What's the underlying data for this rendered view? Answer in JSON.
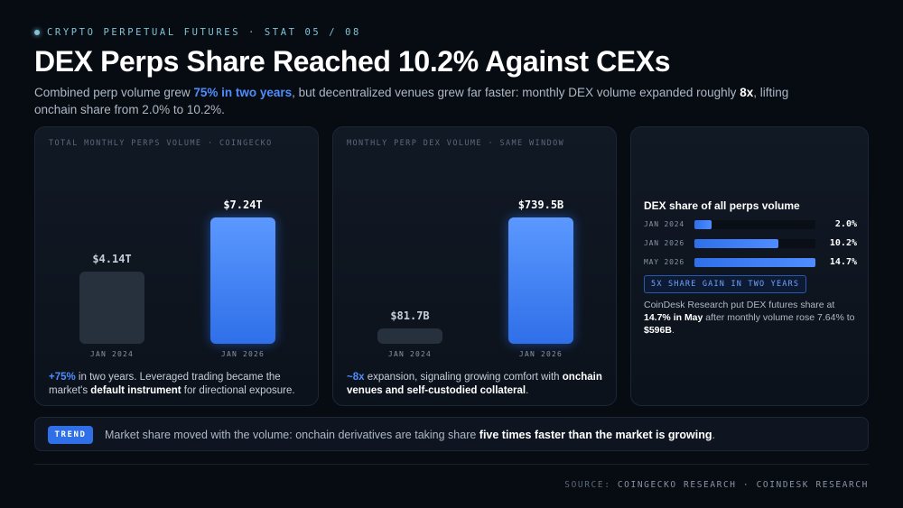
{
  "eyebrow": "CRYPTO PERPETUAL FUTURES · STAT 05 / 08",
  "title": "DEX Perps Share Reached 10.2% Against CEXs",
  "subtitle": {
    "p1": "Combined perp volume grew ",
    "hl1": "75% in two years",
    "p2": ", but decentralized venues grew far faster: monthly DEX volume expanded roughly ",
    "b1": "8x",
    "p3": ", lifting onchain share from 2.0% to 10.2%."
  },
  "colors": {
    "accent": "#4f8dff",
    "muted_bar": "#27313d",
    "background": "#070b12"
  },
  "panel1": {
    "label": "TOTAL MONTHLY PERPS VOLUME · COINGECKO",
    "note": {
      "hl": "+75%",
      "t1": " in two years. Leveraged trading became the market's ",
      "b": "default instrument",
      "t2": " for directional exposure."
    }
  },
  "panel2": {
    "label": "MONTHLY PERP DEX VOLUME · SAME WINDOW",
    "note": {
      "hl": "~8x",
      "t1": " expansion, signaling growing comfort with ",
      "b": "onchain venues and self-custodied collateral",
      "t2": "."
    }
  },
  "chart_data": [
    {
      "type": "bar",
      "categories": [
        "JAN 2024",
        "JAN 2026"
      ],
      "values": [
        4.14,
        7.24
      ],
      "data_labels": [
        "$4.14T",
        "$7.24T"
      ],
      "unit": "T",
      "ylim": [
        0,
        7.24
      ]
    },
    {
      "type": "bar",
      "categories": [
        "JAN 2024",
        "JAN 2026"
      ],
      "values": [
        81.7,
        739.5
      ],
      "data_labels": [
        "$81.7B",
        "$739.5B"
      ],
      "unit": "B",
      "ylim": [
        0,
        739.5
      ]
    },
    {
      "type": "bar",
      "orientation": "horizontal",
      "title": "DEX share of all perps volume",
      "categories": [
        "JAN 2024",
        "JAN 2026",
        "MAY 2026"
      ],
      "values": [
        2.0,
        10.2,
        14.7
      ],
      "data_labels": [
        "2.0%",
        "10.2%",
        "14.7%"
      ],
      "xlim": [
        0,
        14.7
      ]
    }
  ],
  "share": {
    "badge": "5X SHARE GAIN IN TWO YEARS",
    "note": {
      "t1": "CoinDesk Research put DEX futures share at ",
      "b1": "14.7% in May",
      "t2": " after monthly volume rose 7.64% to ",
      "b2": "$596B",
      "t3": "."
    }
  },
  "trend": {
    "tag": "TREND",
    "t1": "Market share moved with the volume: onchain derivatives are taking share ",
    "b": "five times faster than the market is growing",
    "t2": "."
  },
  "source": {
    "key": "SOURCE:",
    "value": "COINGECKO RESEARCH · COINDESK RESEARCH"
  }
}
